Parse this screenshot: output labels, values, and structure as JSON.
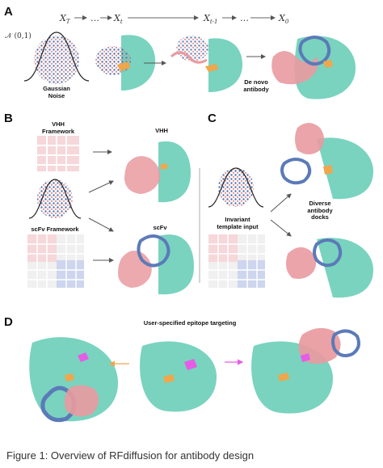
{
  "figure": {
    "caption": "Figure 1: Overview of RFdiffusion for antibody design",
    "colors": {
      "target": "#79d3bf",
      "antibody_heavy": "#e99aa0",
      "antibody_light": "#5b7ab8",
      "epitope": "#f0a64a",
      "hotspot": "#e65ce6",
      "noise_dots_blue": "#5470b0",
      "noise_dots_pink": "#d98a8f"
    }
  },
  "panel_a": {
    "letter": "A",
    "normal_label": "𝒩 (0,1)",
    "steps": [
      "X",
      "…",
      "X",
      "X",
      "…",
      "X"
    ],
    "step_subs": [
      "T",
      "",
      "t",
      "t-1",
      "",
      "0"
    ],
    "noise_label": "Gaussian\nNoise",
    "output_label": "De novo\nantibody"
  },
  "panel_b": {
    "letter": "B",
    "vhh_framework_label": "VHH\nFramework",
    "scfv_framework_label": "scFv Framework",
    "vhh_output_label": "VHH",
    "scfv_output_label": "scFv"
  },
  "panel_c": {
    "letter": "C",
    "template_label": "Invariant\ntemplate input",
    "docks_label": "Diverse\nantibody\ndocks"
  },
  "panel_d": {
    "letter": "D",
    "title": "User-specified epitope targeting"
  }
}
